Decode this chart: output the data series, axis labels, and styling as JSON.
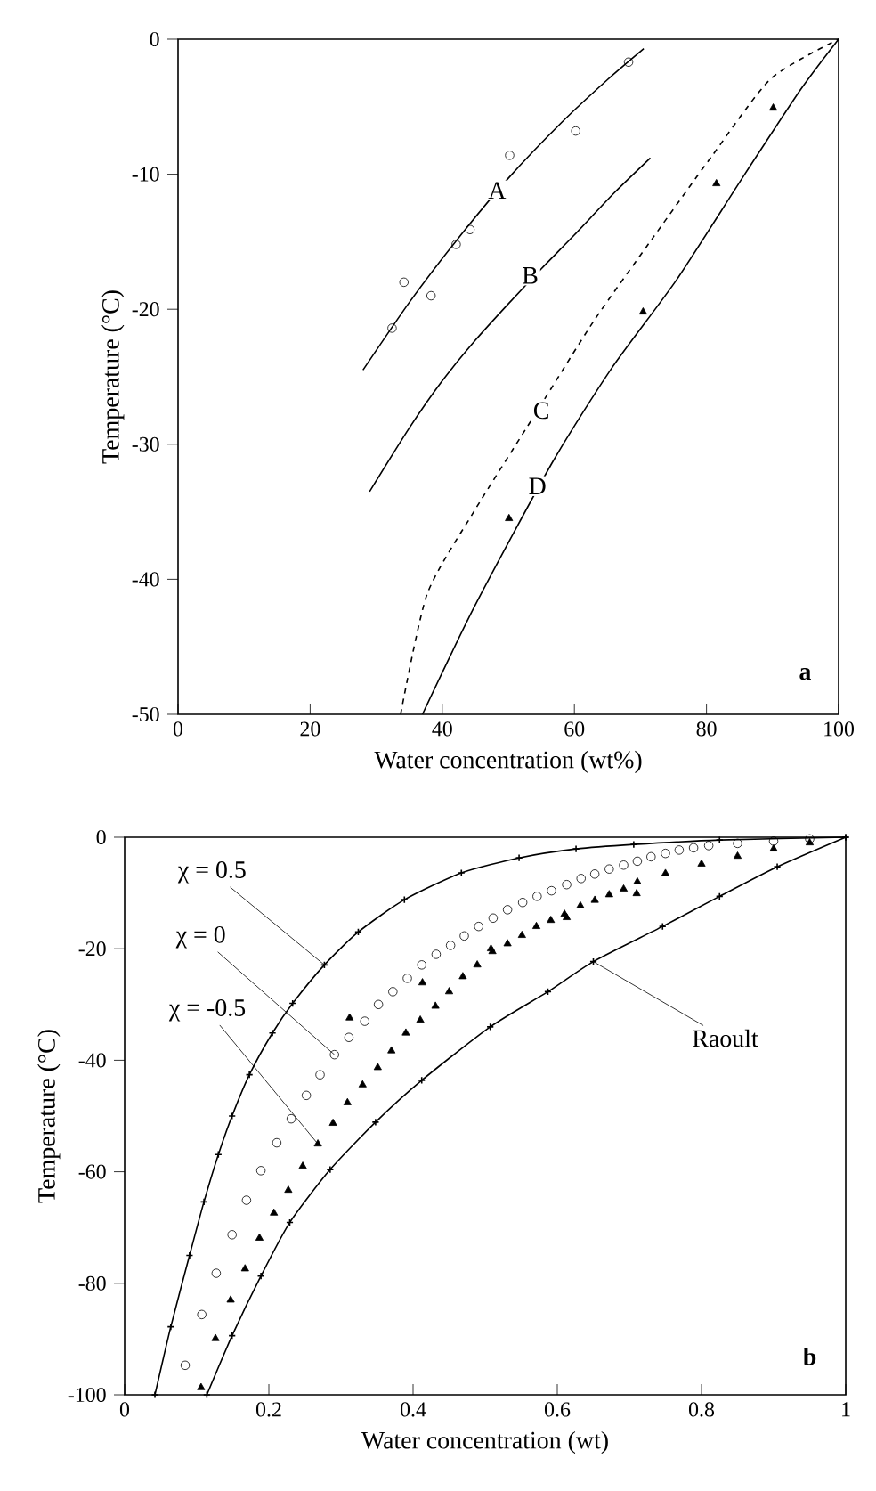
{
  "chart_data": [
    {
      "type": "line",
      "xlabel": "Water concentration (wt%)",
      "ylabel": "Temperature (°C)",
      "xlim": [
        0,
        100
      ],
      "ylim": [
        -50,
        0
      ],
      "xticks": [
        0,
        20,
        40,
        60,
        80,
        100
      ],
      "yticks": [
        -50,
        -40,
        -30,
        -20,
        -10,
        0
      ],
      "series": [
        {
          "type": "scatter",
          "marker": "circle",
          "color": "#000000",
          "x": [
            32.4,
            34.2,
            38.3,
            42.1,
            44.2,
            50.2,
            60.2,
            68.2
          ],
          "values": [
            -21.4,
            -18.0,
            -19.0,
            -15.2,
            -14.1,
            -8.6,
            -6.8,
            -1.7
          ]
        },
        {
          "line_style": "solid",
          "color": "#000000",
          "x": [
            28,
            35,
            42,
            50,
            58,
            65,
            70.5
          ],
          "values": [
            -24.5,
            -19.5,
            -15,
            -10.3,
            -6.2,
            -3.0,
            -0.7
          ]
        },
        {
          "line_style": "solid",
          "color": "#000000",
          "x": [
            29,
            35,
            40,
            45,
            50,
            55,
            60,
            66,
            71.5
          ],
          "values": [
            -33.5,
            -28.8,
            -25.3,
            -22.3,
            -19.6,
            -17.0,
            -14.5,
            -11.4,
            -8.8
          ]
        },
        {
          "line_style": "dashed",
          "color": "#000000",
          "x": [
            33.7,
            37.7,
            44.9,
            53.9,
            62.9,
            71.9,
            80.9,
            89.8,
            100
          ],
          "values": [
            -50,
            -41.1,
            -34.9,
            -27.9,
            -20.9,
            -14.7,
            -8.6,
            -2.9,
            0
          ]
        },
        {
          "line_style": "solid",
          "color": "#000000",
          "x": [
            37,
            44.9,
            56.6,
            65.6,
            75.5,
            85.4,
            94.3,
            100
          ],
          "values": [
            -50,
            -42,
            -31.4,
            -24.4,
            -17.8,
            -10.3,
            -3.7,
            0
          ]
        },
        {
          "type": "scatter",
          "marker": "triangle",
          "color": "#000000",
          "x": [
            50.1,
            70.4,
            81.5,
            90.1
          ],
          "values": [
            -35.5,
            -20.2,
            -10.7,
            -5.1
          ]
        }
      ],
      "annotations": [
        {
          "text": "A",
          "x": 48.3,
          "y": -11.2
        },
        {
          "text": "B",
          "x": 53.3,
          "y": -17.5
        },
        {
          "text": "C",
          "x": 55,
          "y": -27.5
        },
        {
          "text": "D",
          "x": 54.4,
          "y": -33.1
        },
        "a"
      ]
    },
    {
      "type": "line",
      "xlabel": "Water concentration (wt)",
      "ylabel": "Temperature (°C)",
      "xlim": [
        0,
        1
      ],
      "ylim": [
        -100,
        0
      ],
      "xticks": [
        0,
        0.2,
        0.4,
        0.6,
        0.8,
        1
      ],
      "yticks": [
        -100,
        -80,
        -60,
        -40,
        -20,
        0
      ],
      "series": [
        {
          "marker": "cross",
          "line_style": "solid",
          "color": "#000000",
          "x": [
            0.042,
            0.064,
            0.09,
            0.11,
            0.13,
            0.149,
            0.173,
            0.205,
            0.233,
            0.277,
            0.324,
            0.388,
            0.467,
            0.547,
            0.626,
            0.706,
            0.825,
            1.0
          ],
          "values": [
            -100,
            -87.8,
            -75,
            -65.4,
            -56.9,
            -50,
            -42.6,
            -35.1,
            -29.8,
            -22.9,
            -17,
            -11.2,
            -6.4,
            -3.7,
            -2.1,
            -1.3,
            -0.5,
            0
          ]
        },
        {
          "type": "scatter",
          "marker": "circle",
          "color": "#000000",
          "x": [
            0.084,
            0.107,
            0.127,
            0.149,
            0.169,
            0.189,
            0.211,
            0.231,
            0.252,
            0.271,
            0.291,
            0.311,
            0.333,
            0.352,
            0.372,
            0.392,
            0.412,
            0.432,
            0.452,
            0.471,
            0.491,
            0.511,
            0.531,
            0.552,
            0.572,
            0.592,
            0.613,
            0.633,
            0.652,
            0.672,
            0.692,
            0.711,
            0.73,
            0.75,
            0.769,
            0.789,
            0.81,
            0.85,
            0.9,
            0.95
          ],
          "values": [
            -94.7,
            -85.6,
            -78.2,
            -71.3,
            -65.1,
            -59.8,
            -54.8,
            -50.5,
            -46.3,
            -42.6,
            -39.0,
            -35.9,
            -33.0,
            -30.0,
            -27.7,
            -25.3,
            -22.9,
            -21.0,
            -19.4,
            -17.7,
            -16.0,
            -14.5,
            -13.0,
            -11.7,
            -10.6,
            -9.6,
            -8.5,
            -7.4,
            -6.6,
            -5.7,
            -5.0,
            -4.3,
            -3.5,
            -2.9,
            -2.3,
            -1.9,
            -1.5,
            -1.1,
            -0.7,
            -0.3
          ]
        },
        {
          "type": "scatter",
          "marker": "triangle",
          "color": "#000000",
          "x": [
            0.106,
            0.126,
            0.147,
            0.167,
            0.187,
            0.207,
            0.227,
            0.247,
            0.268,
            0.289,
            0.309,
            0.33,
            0.351,
            0.37,
            0.39,
            0.41,
            0.431,
            0.45,
            0.469,
            0.489,
            0.51,
            0.531,
            0.551,
            0.571,
            0.591,
            0.61,
            0.632,
            0.652,
            0.672,
            0.692,
            0.711,
            0.75,
            0.8,
            0.85,
            0.9,
            0.95
          ],
          "values": [
            -98.7,
            -89.9,
            -83.0,
            -77.4,
            -71.9,
            -67.4,
            -63.3,
            -59.0,
            -55.0,
            -51.3,
            -47.6,
            -44.4,
            -41.3,
            -38.3,
            -35.1,
            -32.8,
            -30.3,
            -27.7,
            -25.0,
            -22.9,
            -20.5,
            -19.1,
            -17.6,
            -16.0,
            -14.9,
            -13.8,
            -12.3,
            -11.3,
            -10.3,
            -9.3,
            -8.0,
            -6.5,
            -4.8,
            -3.4,
            -2.1,
            -1.0
          ]
        },
        {
          "type": "scatter",
          "marker": "triangle",
          "color": "#000000",
          "x": [
            0.312,
            0.413,
            0.508,
            0.613,
            0.71
          ],
          "values": [
            -32.4,
            -26.1,
            -20.0,
            -14.4,
            -10.1
          ]
        },
        {
          "marker": "cross",
          "line_style": "solid",
          "color": "#000000",
          "x": [
            0.114,
            0.149,
            0.189,
            0.229,
            0.285,
            0.348,
            0.412,
            0.507,
            0.587,
            0.65,
            0.746,
            0.825,
            0.905,
            1.0
          ],
          "values": [
            -100,
            -89.4,
            -78.7,
            -69.1,
            -59.6,
            -51.1,
            -43.6,
            -34.0,
            -27.7,
            -22.3,
            -16.0,
            -10.6,
            -5.3,
            0
          ]
        }
      ],
      "annotations": [
        {
          "text": "χ = 0.5",
          "x": 0.277,
          "y": -22.9
        },
        {
          "text": "χ = 0",
          "x": 0.291,
          "y": -39.0
        },
        {
          "text": "χ = -0.5",
          "x": 0.268,
          "y": -55.0
        },
        {
          "text": "Raoult",
          "x": 0.65,
          "y": -22.3
        },
        "b"
      ]
    }
  ]
}
